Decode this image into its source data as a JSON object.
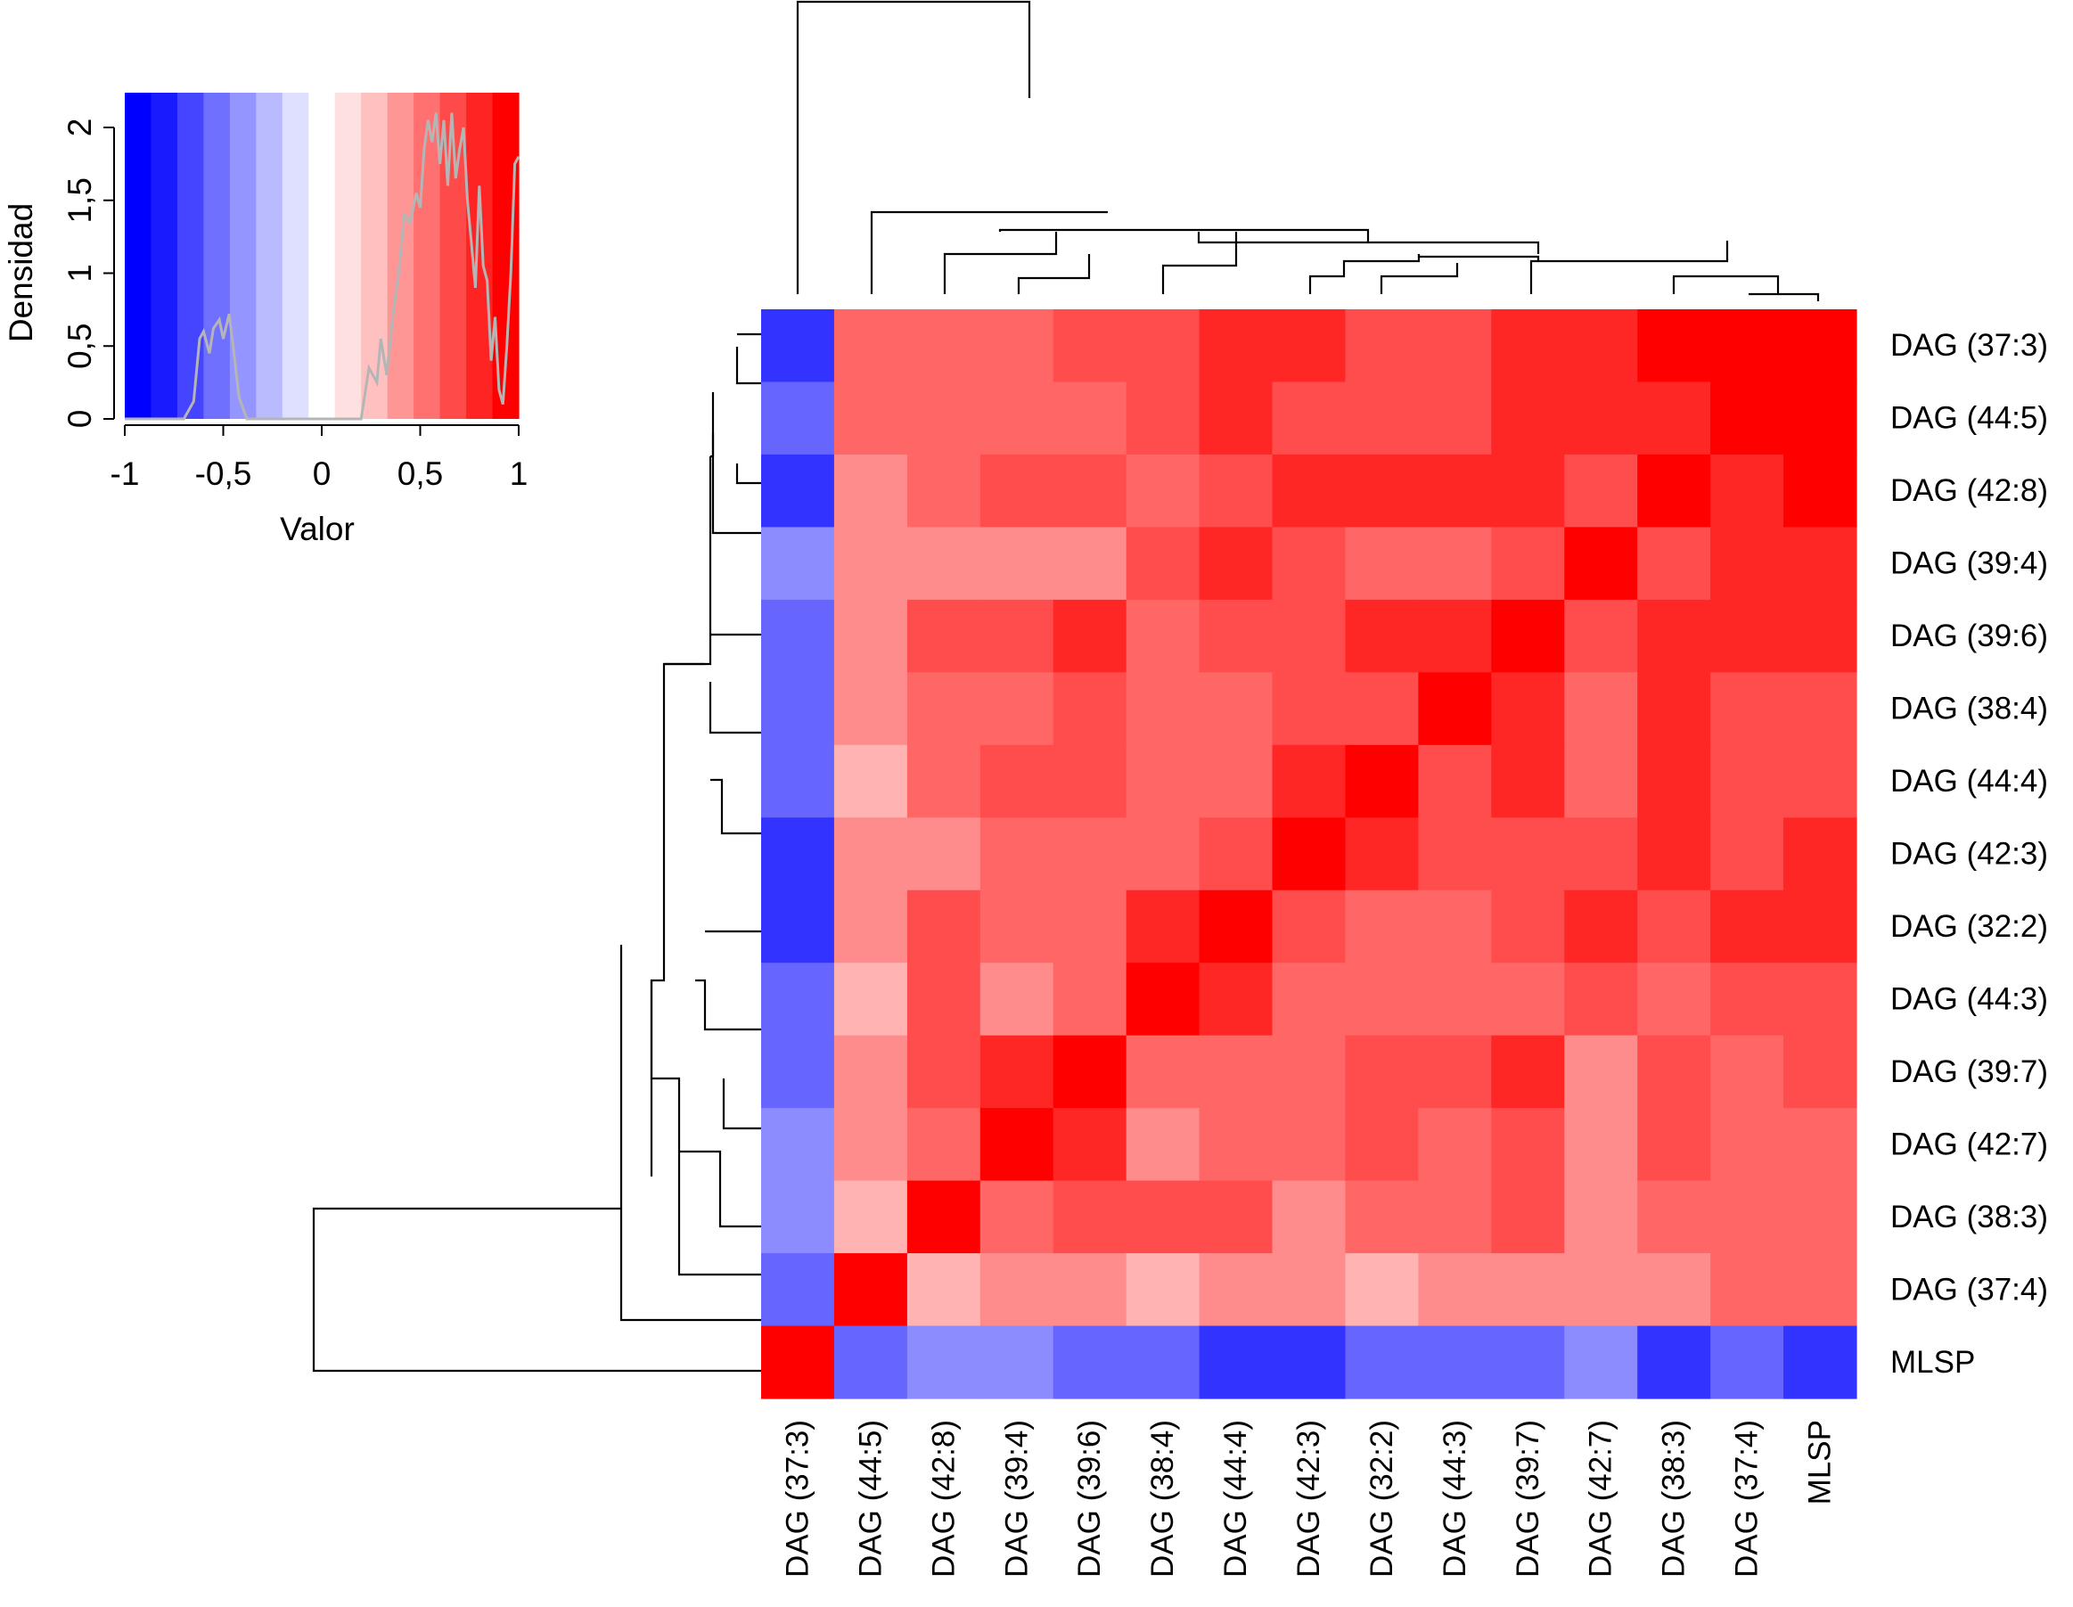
{
  "chart_data": [
    {
      "type": "heatmap",
      "title": "",
      "row_labels": [
        "DAG (37:3)",
        "DAG (44:5)",
        "DAG (42:8)",
        "DAG (39:4)",
        "DAG (39:6)",
        "DAG (38:4)",
        "DAG (44:4)",
        "DAG (42:3)",
        "DAG (32:2)",
        "DAG (44:3)",
        "DAG (39:7)",
        "DAG (42:7)",
        "DAG (38:3)",
        "DAG (37:4)",
        "MLSP"
      ],
      "column_labels": [
        "DAG (37:3)",
        "DAG (44:5)",
        "DAG (42:8)",
        "DAG (39:4)",
        "DAG (39:6)",
        "DAG (38:4)",
        "DAG (44:4)",
        "DAG (42:3)",
        "DAG (32:2)",
        "DAG (44:3)",
        "DAG (39:7)",
        "DAG (42:7)",
        "DAG (38:3)",
        "DAG (37:4)",
        "MLSP"
      ],
      "values": [
        [
          -0.8,
          0.6,
          0.6,
          0.6,
          0.7,
          0.7,
          0.85,
          0.85,
          0.7,
          0.7,
          0.85,
          0.85,
          1.0,
          1.0,
          1.0
        ],
        [
          -0.6,
          0.6,
          0.6,
          0.6,
          0.6,
          0.7,
          0.85,
          0.7,
          0.7,
          0.7,
          0.85,
          0.85,
          0.85,
          1.0,
          1.0
        ],
        [
          -0.8,
          0.45,
          0.6,
          0.7,
          0.7,
          0.6,
          0.7,
          0.85,
          0.85,
          0.85,
          0.85,
          0.7,
          1.0,
          0.85,
          1.0
        ],
        [
          -0.45,
          0.45,
          0.45,
          0.45,
          0.45,
          0.7,
          0.85,
          0.7,
          0.6,
          0.6,
          0.7,
          1.0,
          0.7,
          0.85,
          0.85
        ],
        [
          -0.6,
          0.45,
          0.7,
          0.7,
          0.85,
          0.6,
          0.7,
          0.7,
          0.85,
          0.85,
          1.0,
          0.7,
          0.85,
          0.85,
          0.85
        ],
        [
          -0.6,
          0.45,
          0.6,
          0.6,
          0.7,
          0.6,
          0.6,
          0.7,
          0.7,
          1.0,
          0.85,
          0.6,
          0.85,
          0.7,
          0.7
        ],
        [
          -0.6,
          0.3,
          0.6,
          0.7,
          0.7,
          0.6,
          0.6,
          0.85,
          1.0,
          0.7,
          0.85,
          0.6,
          0.85,
          0.7,
          0.7
        ],
        [
          -0.8,
          0.45,
          0.45,
          0.6,
          0.6,
          0.6,
          0.7,
          1.0,
          0.85,
          0.7,
          0.7,
          0.7,
          0.85,
          0.7,
          0.85
        ],
        [
          -0.8,
          0.45,
          0.7,
          0.6,
          0.6,
          0.85,
          1.0,
          0.7,
          0.6,
          0.6,
          0.7,
          0.85,
          0.7,
          0.85,
          0.85
        ],
        [
          -0.6,
          0.3,
          0.7,
          0.45,
          0.6,
          1.0,
          0.85,
          0.6,
          0.6,
          0.6,
          0.6,
          0.7,
          0.6,
          0.7,
          0.7
        ],
        [
          -0.6,
          0.45,
          0.7,
          0.85,
          1.0,
          0.6,
          0.6,
          0.6,
          0.7,
          0.7,
          0.85,
          0.45,
          0.7,
          0.6,
          0.7
        ],
        [
          -0.45,
          0.45,
          0.6,
          1.0,
          0.85,
          0.45,
          0.6,
          0.6,
          0.7,
          0.6,
          0.7,
          0.45,
          0.7,
          0.6,
          0.6
        ],
        [
          -0.45,
          0.3,
          1.0,
          0.6,
          0.7,
          0.7,
          0.7,
          0.45,
          0.6,
          0.6,
          0.7,
          0.45,
          0.6,
          0.6,
          0.6
        ],
        [
          -0.6,
          1.0,
          0.3,
          0.45,
          0.45,
          0.3,
          0.45,
          0.45,
          0.3,
          0.45,
          0.45,
          0.45,
          0.45,
          0.6,
          0.6
        ],
        [
          1.0,
          -0.6,
          -0.45,
          -0.45,
          -0.6,
          -0.6,
          -0.8,
          -0.8,
          -0.6,
          -0.6,
          -0.6,
          -0.45,
          -0.8,
          -0.6,
          -0.8
        ]
      ],
      "color_scale": {
        "low": "#0000ff",
        "mid": "#ffffff",
        "high": "#ff0000",
        "range": [
          -1,
          1
        ]
      },
      "row_dendrogram": "left",
      "column_dendrogram": "top"
    },
    {
      "type": "area",
      "title": "",
      "xlabel": "Valor",
      "ylabel": "Densidad",
      "xlim": [
        -1,
        1
      ],
      "ylim": [
        0,
        2.25
      ],
      "x_ticks": [
        "-1",
        "-0,5",
        "0",
        "0,5",
        "1"
      ],
      "y_ticks": [
        "0",
        "0,5",
        "1",
        "1,5",
        "2"
      ],
      "x": [
        -1.0,
        -0.7,
        -0.65,
        -0.62,
        -0.6,
        -0.57,
        -0.55,
        -0.52,
        -0.5,
        -0.47,
        -0.45,
        -0.42,
        -0.38,
        -0.3,
        0.2,
        0.24,
        0.28,
        0.3,
        0.33,
        0.36,
        0.39,
        0.42,
        0.45,
        0.48,
        0.5,
        0.52,
        0.54,
        0.56,
        0.58,
        0.6,
        0.62,
        0.64,
        0.66,
        0.68,
        0.7,
        0.72,
        0.74,
        0.76,
        0.78,
        0.8,
        0.82,
        0.84,
        0.86,
        0.88,
        0.9,
        0.92,
        0.94,
        0.96,
        0.98,
        1.0
      ],
      "y": [
        0,
        0,
        0.12,
        0.55,
        0.6,
        0.45,
        0.62,
        0.68,
        0.55,
        0.72,
        0.5,
        0.15,
        0,
        0,
        0,
        0.35,
        0.25,
        0.55,
        0.3,
        0.7,
        1.0,
        1.4,
        1.35,
        1.55,
        1.45,
        1.85,
        2.05,
        1.9,
        2.1,
        1.75,
        2.05,
        1.6,
        2.1,
        1.65,
        1.85,
        2.0,
        1.5,
        1.2,
        0.9,
        1.6,
        1.05,
        0.95,
        0.4,
        0.7,
        0.2,
        0.1,
        0.5,
        1.0,
        1.75,
        1.8
      ],
      "colors": [
        "#0000ff",
        "#1a1aff",
        "#4545ff",
        "#7070ff",
        "#9595ff",
        "#babaff",
        "#dfdfff",
        "#ffffff",
        "#ffe0e0",
        "#ffc0c0",
        "#ff9696",
        "#ff7070",
        "#ff4a4a",
        "#ff2424",
        "#ff0000"
      ],
      "line_color": "#b5b5b5"
    }
  ]
}
